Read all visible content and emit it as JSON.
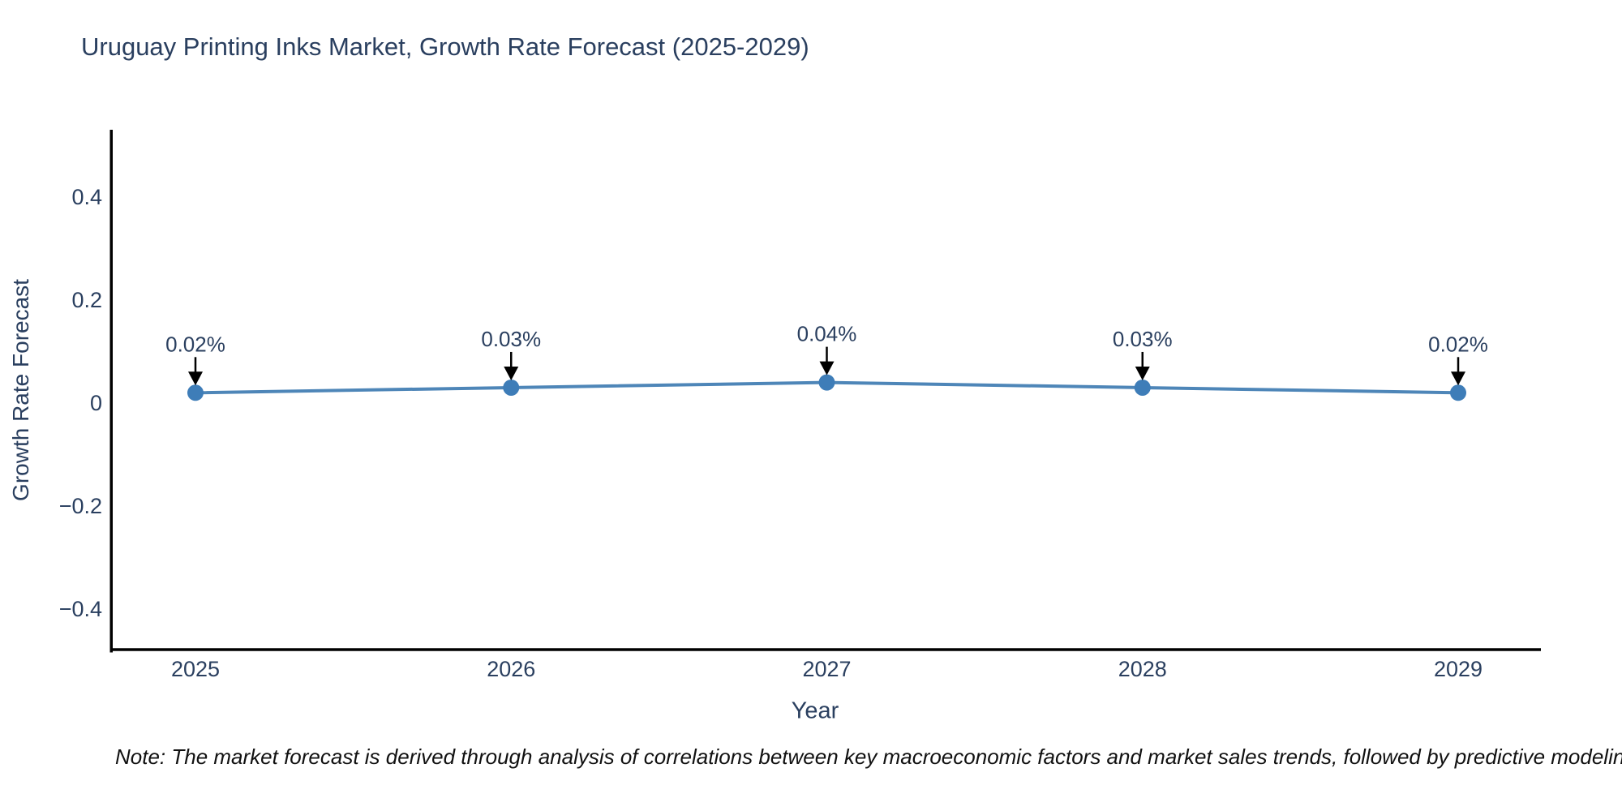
{
  "page": {
    "title": "Uruguay Printing Inks Market, Growth Rate Forecast (2025-2029)",
    "note": "Note: The market forecast is derived through analysis of correlations between key macroeconomic factors and market sales trends, followed by predictive modeling to project future sales"
  },
  "chart_data": {
    "type": "line",
    "title": "Uruguay Printing Inks Market, Growth Rate Forecast (2025-2029)",
    "xlabel": "Year",
    "ylabel": "Growth Rate Forecast",
    "categories": [
      "2025",
      "2026",
      "2027",
      "2028",
      "2029"
    ],
    "values": [
      0.02,
      0.03,
      0.04,
      0.03,
      0.02
    ],
    "point_labels": [
      "0.02%",
      "0.03%",
      "0.04%",
      "0.03%",
      "0.02%"
    ],
    "yticks": [
      0.4,
      0.2,
      0,
      -0.2,
      -0.4
    ],
    "ytick_labels": [
      "0.4",
      "0.2",
      "0",
      "−0.2",
      "−0.4"
    ],
    "ylim": [
      -0.48,
      0.53
    ],
    "grid": false,
    "legend": "none",
    "line_color": "#4e86b8",
    "marker_color": "#3e7db8",
    "axis_color": "#000000",
    "label_color": "#2a3f5f",
    "annotation_text_color": "#2a3f5f",
    "annotation_arrow_color": "#000000"
  }
}
